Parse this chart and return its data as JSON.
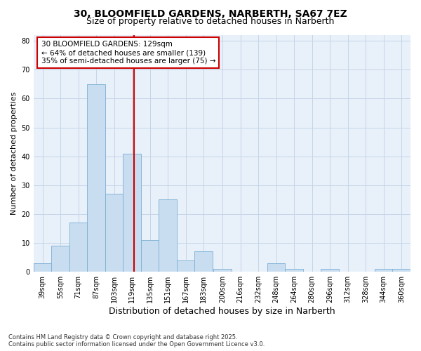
{
  "title_line1": "30, BLOOMFIELD GARDENS, NARBERTH, SA67 7EZ",
  "title_line2": "Size of property relative to detached houses in Narberth",
  "xlabel": "Distribution of detached houses by size in Narberth",
  "ylabel": "Number of detached properties",
  "annotation_line1": "30 BLOOMFIELD GARDENS: 129sqm",
  "annotation_line2": "← 64% of detached houses are smaller (139)",
  "annotation_line3": "35% of semi-detached houses are larger (75) →",
  "property_size": 129,
  "bins_left": [
    39,
    55,
    71,
    87,
    103,
    119,
    135,
    151,
    167,
    183,
    200,
    216,
    232,
    248,
    264,
    280,
    296,
    312,
    328,
    344,
    360
  ],
  "bin_width": 16,
  "bar_values": [
    3,
    9,
    17,
    65,
    27,
    41,
    11,
    25,
    4,
    7,
    1,
    0,
    0,
    3,
    1,
    0,
    1,
    0,
    0,
    1,
    1
  ],
  "bar_color": "#c8ddf0",
  "bar_edgecolor": "#7bafd4",
  "vline_color": "#cc0000",
  "vline_x": 129,
  "box_edgecolor": "#cc0000",
  "plot_bg_color": "#e8f0fa",
  "fig_bg_color": "#ffffff",
  "grid_color": "#c5d5e8",
  "ylim_max": 82,
  "yticks": [
    0,
    10,
    20,
    30,
    40,
    50,
    60,
    70,
    80
  ],
  "footer": "Contains HM Land Registry data © Crown copyright and database right 2025.\nContains public sector information licensed under the Open Government Licence v3.0.",
  "title_fontsize": 10,
  "subtitle_fontsize": 9,
  "xlabel_fontsize": 9,
  "ylabel_fontsize": 8,
  "tick_fontsize": 7,
  "annotation_fontsize": 7.5,
  "footer_fontsize": 6
}
